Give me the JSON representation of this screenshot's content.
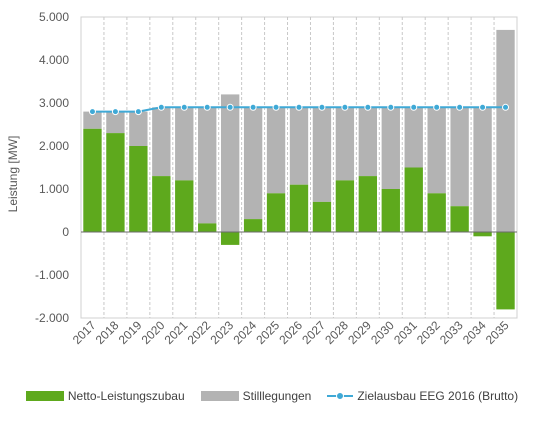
{
  "chart_data": {
    "type": "bar",
    "categories": [
      "2017",
      "2018",
      "2019",
      "2020",
      "2021",
      "2022",
      "2023",
      "2024",
      "2025",
      "2026",
      "2027",
      "2028",
      "2029",
      "2030",
      "2031",
      "2032",
      "2033",
      "2034",
      "2035"
    ],
    "series": [
      {
        "name": "Netto-Leistungszubau",
        "type": "bar",
        "color": "#5ea91d",
        "values": [
          2400,
          2300,
          2000,
          1300,
          1200,
          200,
          -300,
          300,
          900,
          1100,
          700,
          1200,
          1300,
          1000,
          1500,
          900,
          600,
          -100,
          -1800
        ]
      },
      {
        "name": "Stilllegungen",
        "type": "bar",
        "color": "#b3b3b3",
        "values": [
          400,
          500,
          800,
          1600,
          1700,
          2700,
          3200,
          2600,
          2000,
          1800,
          2200,
          1700,
          1600,
          1900,
          1400,
          2000,
          2300,
          2900,
          4700
        ]
      },
      {
        "name": "Zielausbau EEG 2016 (Brutto)",
        "type": "line",
        "color": "#3fa9d6",
        "values": [
          2800,
          2800,
          2800,
          2900,
          2900,
          2900,
          2900,
          2900,
          2900,
          2900,
          2900,
          2900,
          2900,
          2900,
          2900,
          2900,
          2900,
          2900,
          2900
        ]
      }
    ],
    "ylabel": "Leistung [MW]",
    "xlabel": "",
    "ylim": [
      -2000,
      5000
    ],
    "yticks": [
      5000,
      4000,
      3000,
      2000,
      1000,
      0,
      -1000,
      -2000
    ],
    "ytick_labels": [
      "5.000",
      "4.000",
      "3.000",
      "2.000",
      "1.000",
      "0",
      "-1.000",
      "-2.000"
    ],
    "grid": "vertical dashed",
    "legend_position": "bottom"
  }
}
